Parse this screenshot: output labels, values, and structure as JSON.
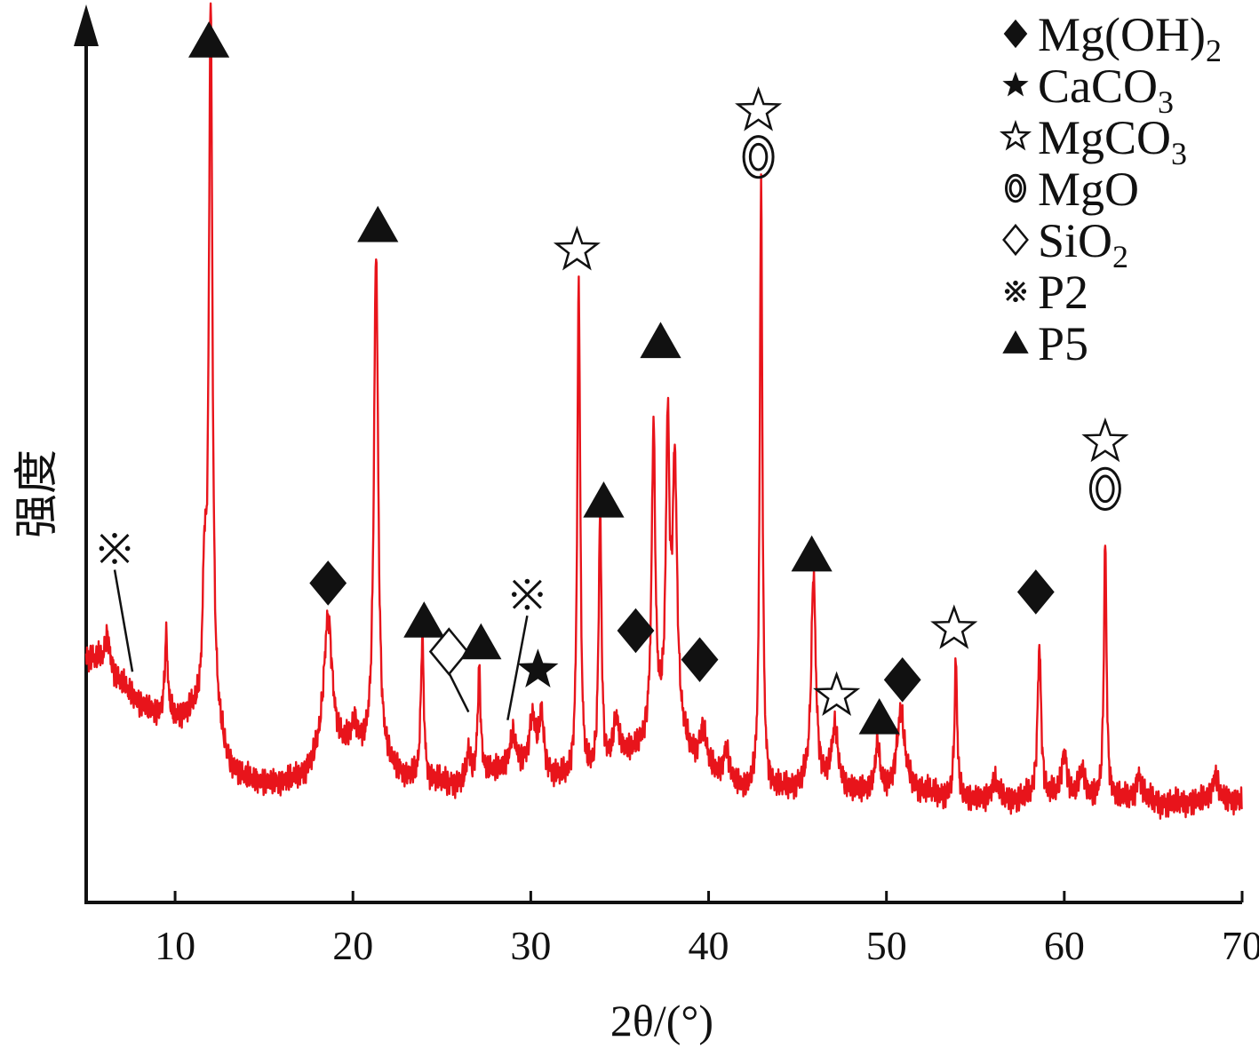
{
  "chart_data": {
    "type": "line",
    "xlabel": "2θ/(°)",
    "ylabel": "强度",
    "xlim": [
      5,
      70
    ],
    "ylim": [
      0,
      100
    ],
    "xticks": [
      10,
      20,
      30,
      40,
      50,
      60,
      70
    ],
    "grid": false,
    "legend_position": "top-right",
    "series": [
      {
        "color": "#e8141b",
        "background": [
          [
            5.0,
            27
          ],
          [
            6.0,
            26
          ],
          [
            7.0,
            23.5
          ],
          [
            8.0,
            21
          ],
          [
            9.0,
            19.5
          ],
          [
            10.0,
            19
          ],
          [
            11.0,
            19.5
          ],
          [
            12.5,
            16
          ],
          [
            13.0,
            13
          ],
          [
            14.0,
            11.5
          ],
          [
            15.0,
            11
          ],
          [
            16.0,
            11
          ],
          [
            17.0,
            11.5
          ],
          [
            18.0,
            13
          ],
          [
            20.0,
            15
          ],
          [
            21.0,
            14
          ],
          [
            22.0,
            13
          ],
          [
            23.0,
            11.5
          ],
          [
            25.0,
            11
          ],
          [
            26.0,
            11
          ],
          [
            27.0,
            12
          ],
          [
            28.0,
            12.5
          ],
          [
            29.0,
            13
          ],
          [
            30.0,
            13
          ],
          [
            31.0,
            12
          ],
          [
            32.0,
            11
          ],
          [
            33.0,
            11
          ],
          [
            34.0,
            12
          ],
          [
            35.0,
            14
          ],
          [
            36.0,
            15
          ],
          [
            37.0,
            17
          ],
          [
            38.0,
            18
          ],
          [
            39.0,
            14
          ],
          [
            40.0,
            12
          ],
          [
            41.0,
            11
          ],
          [
            42.0,
            10
          ],
          [
            44.0,
            10
          ],
          [
            45.0,
            10.5
          ],
          [
            46.0,
            11
          ],
          [
            47.0,
            11
          ],
          [
            48.0,
            10
          ],
          [
            50.0,
            10
          ],
          [
            51.0,
            11
          ],
          [
            52.0,
            10
          ],
          [
            53.0,
            9.5
          ],
          [
            55.0,
            9
          ],
          [
            58.0,
            9
          ],
          [
            60.0,
            9
          ],
          [
            62.0,
            9
          ],
          [
            64.0,
            9
          ],
          [
            66.0,
            8.5
          ],
          [
            68.0,
            9
          ],
          [
            70.0,
            9
          ]
        ],
        "peaks": [
          [
            6.2,
            4,
            0.15
          ],
          [
            9.5,
            10,
            0.1
          ],
          [
            11.65,
            16,
            0.12
          ],
          [
            12.0,
            90,
            0.12
          ],
          [
            18.6,
            18,
            0.3
          ],
          [
            20.1,
            3,
            0.2
          ],
          [
            21.3,
            63,
            0.14
          ],
          [
            23.9,
            18,
            0.1
          ],
          [
            26.5,
            3.5,
            0.1
          ],
          [
            27.1,
            13,
            0.1
          ],
          [
            29.0,
            4,
            0.2
          ],
          [
            30.1,
            6,
            0.2
          ],
          [
            30.6,
            7,
            0.15
          ],
          [
            32.7,
            62,
            0.1
          ],
          [
            33.9,
            32,
            0.1
          ],
          [
            34.8,
            5,
            0.2
          ],
          [
            36.9,
            38,
            0.12
          ],
          [
            37.7,
            36,
            0.12
          ],
          [
            38.1,
            32,
            0.15
          ],
          [
            39.7,
            5,
            0.25
          ],
          [
            41.0,
            4,
            0.2
          ],
          [
            42.95,
            75,
            0.09
          ],
          [
            45.9,
            26,
            0.15
          ],
          [
            47.1,
            7,
            0.2
          ],
          [
            49.5,
            6,
            0.15
          ],
          [
            50.8,
            9,
            0.25
          ],
          [
            53.9,
            17,
            0.09
          ],
          [
            56.1,
            2.5,
            0.2
          ],
          [
            58.6,
            19,
            0.12
          ],
          [
            60.0,
            5.5,
            0.2
          ],
          [
            61.0,
            3.5,
            0.2
          ],
          [
            62.3,
            32,
            0.09
          ],
          [
            64.2,
            3,
            0.2
          ],
          [
            68.5,
            3,
            0.2
          ]
        ]
      }
    ],
    "annotations": [
      {
        "phase": "P2",
        "symbol": "asterism",
        "x": 6.6,
        "y": 40.3,
        "leader_to": [
          7.6,
          25
        ]
      },
      {
        "phase": "P5",
        "symbol": "triangle",
        "x": 11.9,
        "y": 103.3
      },
      {
        "phase": "Mg(OH)2",
        "symbol": "diamond",
        "x": 18.6,
        "y": 36.0
      },
      {
        "phase": "P5",
        "symbol": "triangle",
        "x": 21.4,
        "y": 80.4
      },
      {
        "phase": "P5",
        "symbol": "triangle",
        "x": 24.0,
        "y": 31.3
      },
      {
        "phase": "SiO2",
        "symbol": "diamond-open",
        "x": 25.4,
        "y": 27.5,
        "leader_to": [
          26.5,
          20
        ]
      },
      {
        "phase": "P5",
        "symbol": "triangle",
        "x": 27.2,
        "y": 28.6
      },
      {
        "phase": "P2",
        "symbol": "asterism",
        "x": 29.8,
        "y": 34.6,
        "leader_to": [
          28.7,
          19
        ]
      },
      {
        "phase": "CaCO3",
        "symbol": "star",
        "x": 30.4,
        "y": 25.2
      },
      {
        "phase": "MgCO3",
        "symbol": "star-open",
        "x": 32.6,
        "y": 77.3
      },
      {
        "phase": "P5",
        "symbol": "triangle",
        "x": 34.1,
        "y": 46.2
      },
      {
        "phase": "Mg(OH)2",
        "symbol": "diamond",
        "x": 35.9,
        "y": 30.1
      },
      {
        "phase": "P5",
        "symbol": "triangle",
        "x": 37.3,
        "y": 66.0
      },
      {
        "phase": "Mg(OH)2",
        "symbol": "diamond",
        "x": 39.5,
        "y": 26.5
      },
      {
        "phase": "MgCO3",
        "symbol": "star-open",
        "x": 42.8,
        "y": 94.6
      },
      {
        "phase": "MgO",
        "symbol": "double-circle",
        "x": 42.8,
        "y": 88.9
      },
      {
        "phase": "P5",
        "symbol": "triangle",
        "x": 45.8,
        "y": 39.5
      },
      {
        "phase": "MgCO3",
        "symbol": "star-open",
        "x": 47.2,
        "y": 22.0
      },
      {
        "phase": "P5",
        "symbol": "triangle",
        "x": 49.6,
        "y": 19.3
      },
      {
        "phase": "Mg(OH)2",
        "symbol": "diamond",
        "x": 50.9,
        "y": 24.0
      },
      {
        "phase": "MgCO3",
        "symbol": "star-open",
        "x": 53.8,
        "y": 30.3
      },
      {
        "phase": "Mg(OH)2",
        "symbol": "diamond",
        "x": 58.4,
        "y": 34.9
      },
      {
        "phase": "MgCO3",
        "symbol": "star-open",
        "x": 62.3,
        "y": 53.5
      },
      {
        "phase": "MgO",
        "symbol": "double-circle",
        "x": 62.3,
        "y": 47.7
      }
    ],
    "legend": [
      {
        "symbol": "diamond",
        "label": "Mg(OH)",
        "sub": "2"
      },
      {
        "symbol": "star",
        "label": "CaCO",
        "sub": "3"
      },
      {
        "symbol": "star-open",
        "label": "MgCO",
        "sub": "3"
      },
      {
        "symbol": "double-circle",
        "label": "MgO",
        "sub": ""
      },
      {
        "symbol": "diamond-open",
        "label": "SiO",
        "sub": "2"
      },
      {
        "symbol": "asterism",
        "label": "P2",
        "sub": ""
      },
      {
        "symbol": "triangle",
        "label": "P5",
        "sub": ""
      }
    ]
  }
}
